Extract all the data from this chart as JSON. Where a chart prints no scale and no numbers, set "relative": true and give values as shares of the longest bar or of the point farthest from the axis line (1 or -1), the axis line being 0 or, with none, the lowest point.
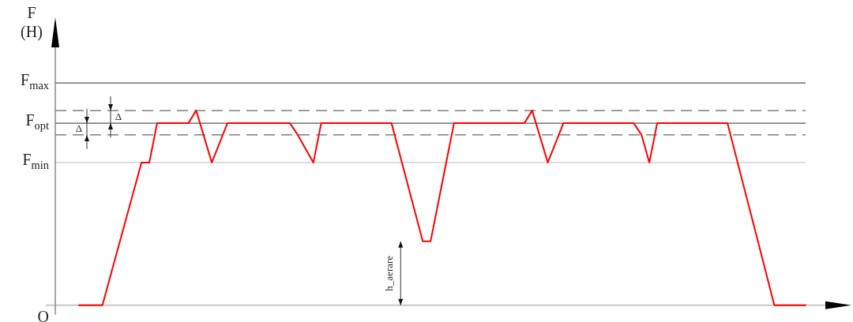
{
  "chart_data": {
    "type": "line",
    "relative": true,
    "ylabel": "F (H)",
    "tick_labels": false,
    "legend": false,
    "marker": "none",
    "line_style": "solid",
    "categories": [
      null,
      null,
      null,
      null,
      null,
      null,
      null,
      null,
      null,
      null,
      null,
      null,
      null,
      null,
      null,
      null,
      null,
      null,
      null,
      null,
      null,
      null,
      null,
      null,
      null,
      null,
      null,
      null,
      null,
      null,
      null,
      null,
      null,
      null,
      null,
      null,
      null,
      null,
      null,
      null,
      null,
      null,
      null,
      null,
      null,
      null,
      null,
      null,
      null,
      null,
      null,
      null,
      null,
      null,
      null,
      null,
      null,
      null,
      null,
      null,
      null,
      null,
      null,
      null,
      null,
      null,
      null,
      null,
      null,
      null,
      null,
      null,
      null,
      null,
      null,
      null,
      null,
      null,
      null,
      null,
      null,
      null,
      null,
      null,
      null,
      null,
      null,
      null,
      null,
      null,
      null,
      null,
      null,
      null
    ],
    "series": [
      {
        "color": "#ff0000",
        "values": [
          0,
          0,
          0,
          0,
          0.147,
          0.293,
          0.44,
          0.586,
          0.733,
          0.733,
          0.935,
          0.935,
          0.935,
          0.935,
          0.935,
          1,
          0.867,
          0.733,
          0.834,
          0.935,
          0.935,
          0.935,
          0.935,
          0.935,
          0.935,
          0.935,
          0.935,
          0.935,
          0.875,
          0.804,
          0.733,
          0.935,
          0.935,
          0.935,
          0.935,
          0.935,
          0.935,
          0.935,
          0.935,
          0.935,
          0.935,
          0.783,
          0.631,
          0.48,
          0.328,
          0.328,
          0.53,
          0.733,
          0.935,
          0.935,
          0.935,
          0.935,
          0.935,
          0.935,
          0.935,
          0.935,
          0.935,
          0.935,
          1,
          0.867,
          0.733,
          0.834,
          0.935,
          0.935,
          0.935,
          0.935,
          0.935,
          0.935,
          0.935,
          0.935,
          0.935,
          0.935,
          0.875,
          0.733,
          0.935,
          0.935,
          0.935,
          0.935,
          0.935,
          0.935,
          0.935,
          0.935,
          0.935,
          0.935,
          0.779,
          0.623,
          0.468,
          0.312,
          0.156,
          0,
          0,
          0,
          0,
          0
        ]
      }
    ],
    "ref_lines": [
      {
        "axis": "y",
        "value": 1.142,
        "label": "F$_{max}$",
        "color": "#555555",
        "line_style": "solid"
      },
      {
        "axis": "y",
        "value": 1,
        "label": null,
        "color": "#666666",
        "line_style": "dashed"
      },
      {
        "axis": "y",
        "value": 0.935,
        "label": "F$_{opt}$",
        "color": "#555555",
        "line_style": "solid"
      },
      {
        "axis": "y",
        "value": 0.875,
        "label": null,
        "color": "#666666",
        "line_style": "dashed"
      },
      {
        "axis": "y",
        "value": 0.733,
        "label": "F$_{min}$",
        "color": "#c8c8c8",
        "line_style": "solid"
      },
      {
        "axis": "y",
        "value": 0,
        "label": "O",
        "color": "#c8c8c8",
        "line_style": "solid"
      }
    ],
    "annotations": [
      "Δ",
      "Δ",
      "h_aerare"
    ]
  }
}
